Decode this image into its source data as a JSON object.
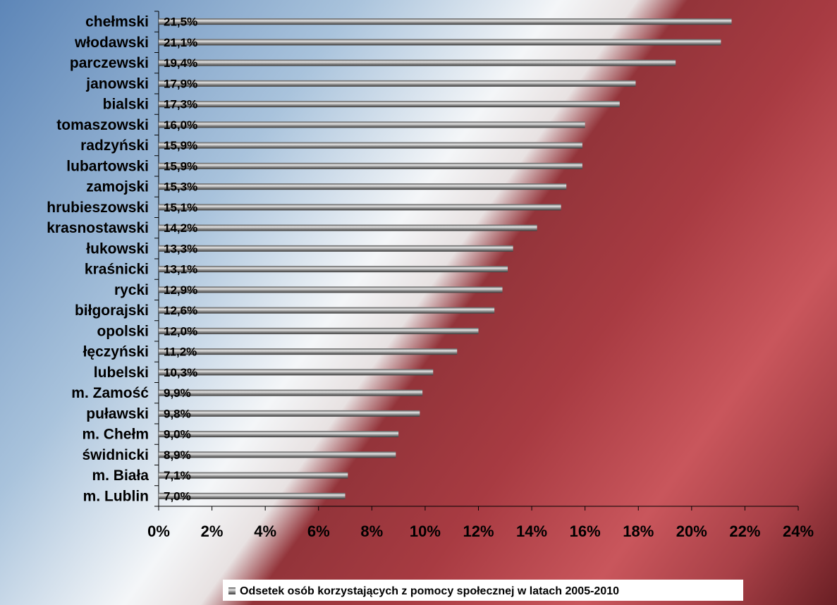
{
  "chart_data": {
    "type": "bar",
    "orientation": "horizontal",
    "categories": [
      "chełmski",
      "włodawski",
      "parczewski",
      "janowski",
      "bialski",
      "tomaszowski",
      "radzyński",
      "lubartowski",
      "zamojski",
      "hrubieszowski",
      "krasnostawski",
      "łukowski",
      "kraśnicki",
      "rycki",
      "biłgorajski",
      "opolski",
      "łęczyński",
      "lubelski",
      "m. Zamość",
      "puławski",
      "m. Chełm",
      "świdnicki",
      "m. Biała",
      "m. Lublin"
    ],
    "series": [
      {
        "name": "Odsetek osób korzystających z pomocy społecznej w latach 2005-2010",
        "values": [
          21.5,
          21.1,
          19.4,
          17.9,
          17.3,
          16.0,
          15.9,
          15.9,
          15.3,
          15.1,
          14.2,
          13.3,
          13.1,
          12.9,
          12.6,
          12.0,
          11.2,
          10.3,
          9.9,
          9.8,
          9.0,
          8.9,
          7.1,
          7.0
        ],
        "labels": [
          "21,5%",
          "21,1%",
          "19,4%",
          "17,9%",
          "17,3%",
          "16,0%",
          "15,9%",
          "15,9%",
          "15,3%",
          "15,1%",
          "14,2%",
          "13,3%",
          "13,1%",
          "12,9%",
          "12,6%",
          "12,0%",
          "11,2%",
          "10,3%",
          "9,9%",
          "9,8%",
          "9,0%",
          "8,9%",
          "7,1%",
          "7,0%"
        ]
      }
    ],
    "xlim": [
      0,
      24
    ],
    "x_ticks": [
      0,
      2,
      4,
      6,
      8,
      10,
      12,
      14,
      16,
      18,
      20,
      22,
      24
    ],
    "x_tick_labels": [
      "0%",
      "2%",
      "4%",
      "6%",
      "8%",
      "10%",
      "12%",
      "14%",
      "16%",
      "18%",
      "20%",
      "22%",
      "24%"
    ],
    "legend_position": "bottom",
    "grid": false,
    "colors": {
      "bar": "#808080",
      "bar_highlight": "#e6e6e6",
      "bar_shadow": "#3a3a3a"
    }
  }
}
